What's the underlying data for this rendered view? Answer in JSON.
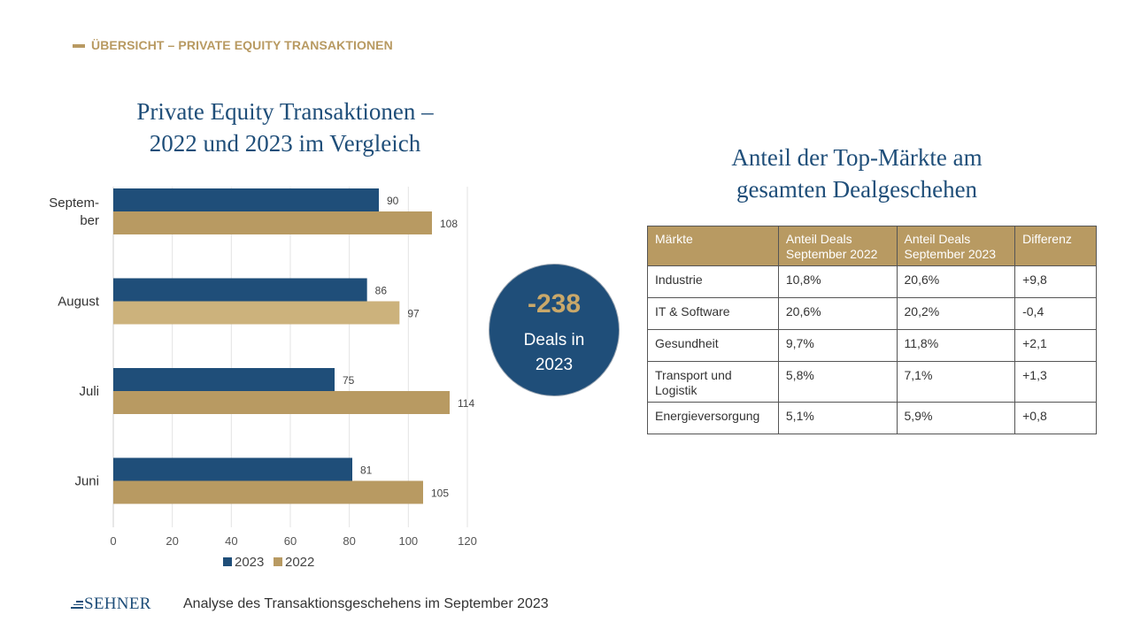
{
  "header": {
    "section_label": "ÜBERSICHT – PRIVATE EQUITY TRANSAKTIONEN"
  },
  "chart_data": {
    "type": "bar",
    "orientation": "horizontal",
    "title": "Private Equity Transaktionen – 2022 und 2023 im Vergleich",
    "title_lines": [
      "Private Equity Transaktionen –",
      "2022 und 2023 im Vergleich"
    ],
    "categories": [
      "Septem-ber",
      "August",
      "Juli",
      "Juni"
    ],
    "category_lines": [
      [
        "Septem-",
        "ber"
      ],
      [
        "August"
      ],
      [
        "Juli"
      ],
      [
        "Juni"
      ]
    ],
    "series": [
      {
        "name": "2023",
        "values": [
          90,
          86,
          75,
          81
        ],
        "color": "#1f4e79"
      },
      {
        "name": "2022",
        "values": [
          108,
          97,
          114,
          105
        ],
        "color": "#b89a62",
        "highlight_color": "#ccb27c"
      }
    ],
    "highlight": {
      "series": "2022",
      "category": "August"
    },
    "xlim": [
      0,
      120
    ],
    "xticks": [
      0,
      20,
      40,
      60,
      80,
      100,
      120
    ],
    "grid": true,
    "legend_position": "bottom"
  },
  "callout": {
    "value": "-238",
    "label_line1": "Deals in",
    "label_line2": "2023"
  },
  "table": {
    "title_lines": [
      "Anteil der Top-Märkte am",
      "gesamten Dealgeschehen"
    ],
    "headers": [
      "Märkte",
      "Anteil Deals September 2022",
      "Anteil Deals September 2023",
      "Differenz"
    ],
    "rows": [
      [
        "Industrie",
        "10,8%",
        "20,6%",
        "+9,8"
      ],
      [
        "IT & Software",
        "20,6%",
        "20,2%",
        "-0,4"
      ],
      [
        "Gesundheit",
        "9,7%",
        "11,8%",
        "+2,1"
      ],
      [
        "Transport und Logistik",
        "5,8%",
        "7,1%",
        "+1,3"
      ],
      [
        "Energieversorgung",
        "5,1%",
        "5,9%",
        "+0,8"
      ]
    ]
  },
  "footer": {
    "logo_text": "SEHNER",
    "caption": "Analyse des Transaktionsgeschehens im September 2023"
  },
  "colors": {
    "navy": "#1f4e79",
    "gold": "#b89a62",
    "light_gold": "#ccb27c",
    "bubble_value": "#c9a86a"
  }
}
